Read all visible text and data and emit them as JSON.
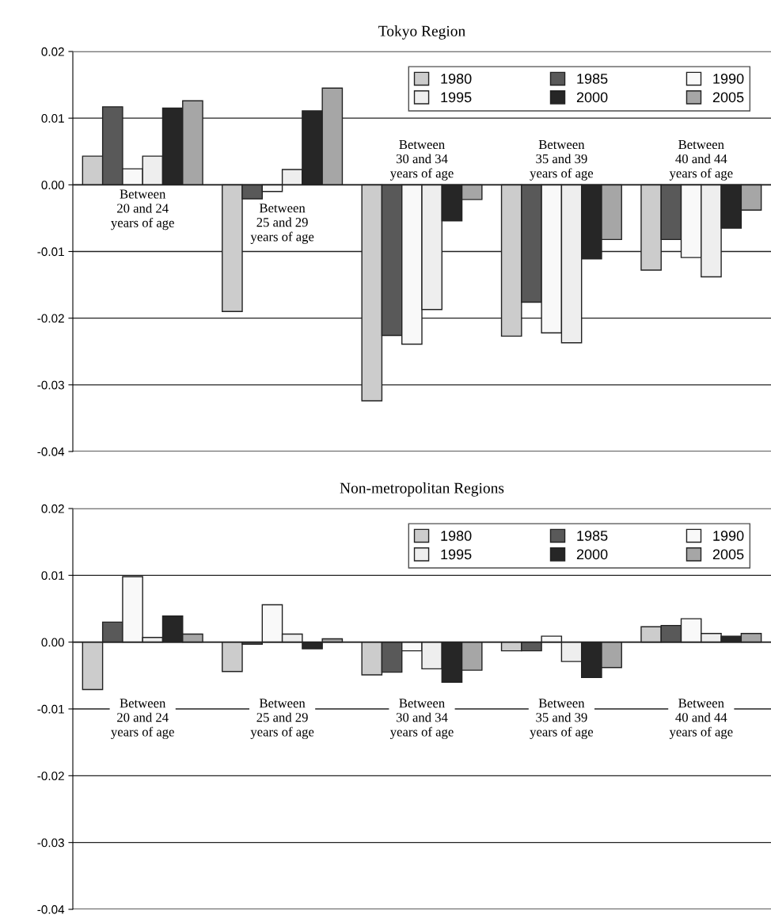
{
  "chart_data": [
    {
      "type": "bar",
      "title": "Tokyo Region",
      "categories": [
        "Between\n20 and 24\nyears of age",
        "Between\n25 and 29\nyears of age",
        "Between\n30 and 34\nyears of age",
        "Between\n35 and 39\nyears of age",
        "Between\n40 and 44\nyears of age"
      ],
      "series": [
        {
          "name": "1980",
          "color": "#cccccc",
          "values": [
            0.0043,
            -0.019,
            -0.0324,
            -0.0227,
            -0.0128
          ]
        },
        {
          "name": "1985",
          "color": "#595959",
          "values": [
            0.0117,
            -0.0021,
            -0.0226,
            -0.0176,
            -0.0082
          ]
        },
        {
          "name": "1990",
          "color": "#f9f9f9",
          "values": [
            0.0024,
            -0.001,
            -0.0239,
            -0.0222,
            -0.0109
          ]
        },
        {
          "name": "1995",
          "color": "#eeeeee",
          "values": [
            0.0043,
            0.0023,
            -0.0187,
            -0.0237,
            -0.0138
          ]
        },
        {
          "name": "2000",
          "color": "#262626",
          "values": [
            0.0115,
            0.0111,
            -0.0054,
            -0.0111,
            -0.0065
          ]
        },
        {
          "name": "2005",
          "color": "#a6a6a6",
          "values": [
            0.0126,
            0.0145,
            -0.0022,
            -0.0082,
            -0.0038
          ]
        }
      ],
      "ylim": [
        -0.04,
        0.02
      ],
      "yticks": [
        {
          "value": -0.04,
          "label": "-0.04"
        },
        {
          "value": -0.03,
          "label": "-0.03"
        },
        {
          "value": -0.02,
          "label": "-0.02"
        },
        {
          "value": -0.01,
          "label": "-0.01"
        },
        {
          "value": 0,
          "label": "0.00"
        },
        {
          "value": 0.01,
          "label": "0.01"
        },
        {
          "value": 0.02,
          "label": "0.02"
        }
      ],
      "grid": "y",
      "legend": "top right"
    },
    {
      "type": "bar",
      "title": "Non-metropolitan Regions",
      "categories": [
        "Between\n20 and 24\nyears of age",
        "Between\n25 and 29\nyears of age",
        "Between\n30 and 34\nyears of age",
        "Between\n35 and 39\nyears of age",
        "Between\n40 and 44\nyears of age"
      ],
      "series": [
        {
          "name": "1980",
          "color": "#cccccc",
          "values": [
            -0.0071,
            -0.0044,
            -0.0049,
            -0.0013,
            0.0023
          ]
        },
        {
          "name": "1985",
          "color": "#595959",
          "values": [
            0.003,
            -0.0003,
            -0.0045,
            -0.0013,
            0.0025
          ]
        },
        {
          "name": "1990",
          "color": "#f9f9f9",
          "values": [
            0.0098,
            0.0056,
            -0.0013,
            0.0009,
            0.0035
          ]
        },
        {
          "name": "1995",
          "color": "#eeeeee",
          "values": [
            0.0007,
            0.0012,
            -0.004,
            -0.0029,
            0.0013
          ]
        },
        {
          "name": "2000",
          "color": "#262626",
          "values": [
            0.0039,
            -0.001,
            -0.006,
            -0.0053,
            0.0009
          ]
        },
        {
          "name": "2005",
          "color": "#a6a6a6",
          "values": [
            0.0012,
            0.0005,
            -0.0042,
            -0.0038,
            0.0013
          ]
        }
      ],
      "ylim": [
        -0.04,
        0.02
      ],
      "yticks": [
        {
          "value": -0.04,
          "label": "-0.04"
        },
        {
          "value": -0.03,
          "label": "-0.03"
        },
        {
          "value": -0.02,
          "label": "-0.02"
        },
        {
          "value": -0.01,
          "label": "-0.01"
        },
        {
          "value": 0,
          "label": "0.00"
        },
        {
          "value": 0.01,
          "label": "0.01"
        },
        {
          "value": 0.02,
          "label": "0.02"
        }
      ],
      "grid": "y",
      "legend": "top right"
    }
  ]
}
